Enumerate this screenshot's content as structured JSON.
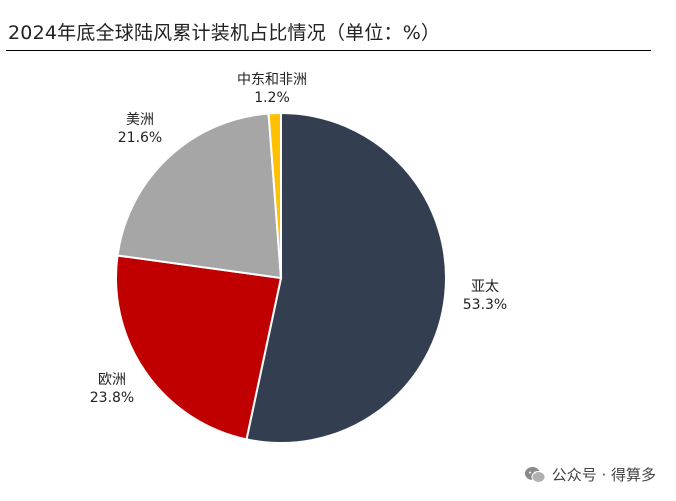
{
  "chart_data": {
    "type": "pie",
    "title": "2024年底全球陆风累计装机占比情况（单位：%）",
    "unit": "%",
    "slices": [
      {
        "label": "亚太",
        "value": 53.3,
        "display": "53.3%",
        "color": "#333f50"
      },
      {
        "label": "欧洲",
        "value": 23.8,
        "display": "23.8%",
        "color": "#c00000"
      },
      {
        "label": "美洲",
        "value": 21.6,
        "display": "21.6%",
        "color": "#a6a6a6"
      },
      {
        "label": "中东和非洲",
        "value": 1.2,
        "display": "1.2%",
        "color": "#ffc000"
      }
    ]
  },
  "watermark": {
    "text": "公众号 · 得算多",
    "icon": "wechat-icon"
  }
}
